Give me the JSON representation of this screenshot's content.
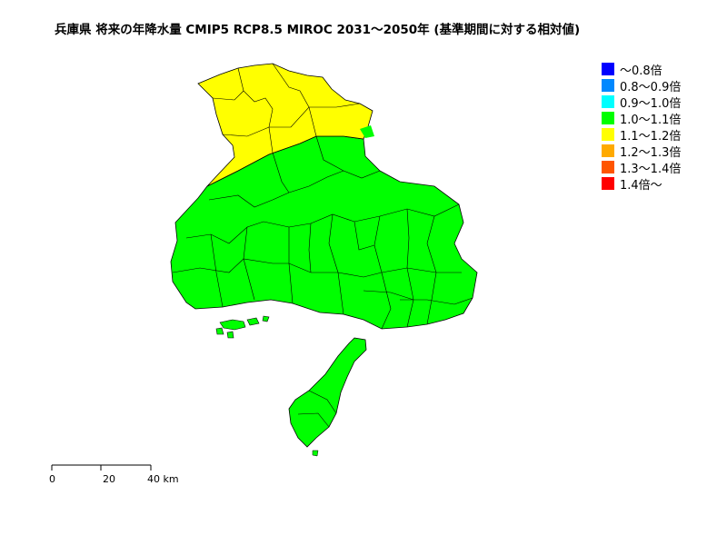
{
  "title": "兵庫県 将来の年降水量 CMIP5 RCP8.5 MIROC 2031〜2050年 (基準期間に対する相対値)",
  "legend": [
    {
      "label": "〜0.8倍",
      "color": "#0000ff"
    },
    {
      "label": "0.8〜0.9倍",
      "color": "#0088ff"
    },
    {
      "label": "0.9〜1.0倍",
      "color": "#00ffff"
    },
    {
      "label": "1.0〜1.1倍",
      "color": "#00ff00"
    },
    {
      "label": "1.1〜1.2倍",
      "color": "#ffff00"
    },
    {
      "label": "1.2〜1.3倍",
      "color": "#ffaa00"
    },
    {
      "label": "1.3〜1.4倍",
      "color": "#ff5500"
    },
    {
      "label": "1.4倍〜",
      "color": "#ff0000"
    }
  ],
  "map": {
    "regions": [
      {
        "name": "north",
        "category": "1.1〜1.2倍",
        "color": "#ffff00"
      },
      {
        "name": "south",
        "category": "1.0〜1.1倍",
        "color": "#00ff00"
      }
    ]
  },
  "scalebar": {
    "ticks": [
      "0",
      "20",
      "40 km"
    ]
  }
}
